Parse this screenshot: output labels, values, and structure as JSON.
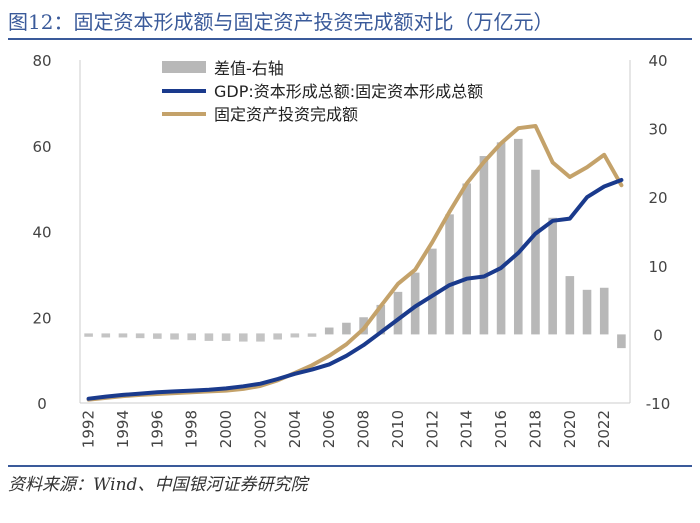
{
  "header": {
    "title": "图12：固定资本形成额与固定资产投资完成额对比（万亿元）"
  },
  "footer": {
    "source": "资料来源：Wind、中国银河证券研究院"
  },
  "colors": {
    "title": "#3a5a9a",
    "gdp_line": "#1a3a8c",
    "invest_line": "#c4a26a",
    "diff_bar": "#b8b8b8",
    "diff_dash": "#c4c4c4",
    "axis": "#cccccc"
  },
  "chart_data": {
    "type": "bar+line",
    "x": [
      1992,
      1993,
      1994,
      1995,
      1996,
      1997,
      1998,
      1999,
      2000,
      2001,
      2002,
      2003,
      2004,
      2005,
      2006,
      2007,
      2008,
      2009,
      2010,
      2011,
      2012,
      2013,
      2014,
      2015,
      2016,
      2017,
      2018,
      2019,
      2020,
      2021,
      2022,
      2023
    ],
    "x_tick_labels": [
      "1992",
      "1994",
      "1996",
      "1998",
      "2000",
      "2002",
      "2004",
      "2006",
      "2008",
      "2010",
      "2012",
      "2014",
      "2016",
      "2018",
      "2020",
      "2022"
    ],
    "y_left": {
      "min": 0,
      "max": 80,
      "ticks": [
        "0",
        "20",
        "40",
        "60",
        "80"
      ]
    },
    "y_right": {
      "min": -10,
      "max": 40,
      "ticks": [
        "-10",
        "0",
        "10",
        "20",
        "30",
        "40"
      ]
    },
    "legend_position": "top-center",
    "series": [
      {
        "name": "差值-右轴",
        "type": "bar",
        "axis": "right",
        "values": [
          -0.2,
          -0.3,
          -0.3,
          -0.4,
          -0.5,
          -0.6,
          -0.7,
          -0.8,
          -0.8,
          -0.9,
          -0.9,
          -0.6,
          -0.3,
          0.2,
          1.0,
          1.7,
          2.5,
          4.3,
          6.2,
          9.0,
          12.5,
          17.5,
          22.0,
          26.0,
          28.0,
          28.5,
          24.0,
          17.0,
          8.5,
          6.5,
          6.8,
          -2.0
        ]
      },
      {
        "name": "GDP:资本形成总额:固定资本形成总额",
        "type": "line",
        "axis": "left",
        "values": [
          1.0,
          1.5,
          1.9,
          2.2,
          2.5,
          2.7,
          2.9,
          3.1,
          3.4,
          3.9,
          4.5,
          5.6,
          6.8,
          7.8,
          9.0,
          11.0,
          13.5,
          16.5,
          19.5,
          22.5,
          25.0,
          27.5,
          29.0,
          29.5,
          31.5,
          35.0,
          39.5,
          42.5,
          43.0,
          48.0,
          50.5,
          52.0
        ]
      },
      {
        "name": "固定资产投资完成额",
        "type": "line",
        "axis": "left",
        "values": [
          0.8,
          1.2,
          1.6,
          1.9,
          2.1,
          2.3,
          2.5,
          2.7,
          2.9,
          3.3,
          4.0,
          5.3,
          7.0,
          8.8,
          11.0,
          13.7,
          17.3,
          22.6,
          27.8,
          31.1,
          37.5,
          44.6,
          51.2,
          56.2,
          60.6,
          64.1,
          64.6,
          56.1,
          52.7,
          55.0,
          57.9,
          50.8
        ]
      }
    ]
  }
}
